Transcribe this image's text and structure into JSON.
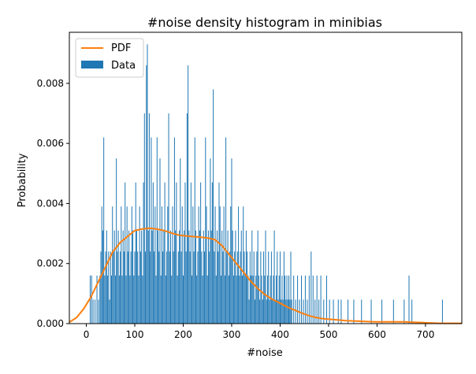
{
  "chart_data": {
    "type": "bar",
    "title": "#noise density histogram in minibias",
    "xlabel": "#noise",
    "ylabel": "Probability",
    "xlim": [
      -35,
      775
    ],
    "ylim": [
      0,
      0.0097
    ],
    "x_ticks": [
      0,
      100,
      200,
      300,
      400,
      500,
      600,
      700
    ],
    "y_ticks": [
      0.0,
      0.002,
      0.004,
      0.006,
      0.008
    ],
    "y_tick_labels": [
      "0.000",
      "0.002",
      "0.004",
      "0.006",
      "0.008"
    ],
    "grid": false,
    "legend_position": "top-left",
    "legend": [
      "PDF",
      "Data"
    ],
    "colors": {
      "Data": "#1f77b4",
      "PDF": "#ff7f0e"
    },
    "series": [
      {
        "name": "Data",
        "type": "bar",
        "bin_width": 1.6,
        "bins": [
          [
            8,
            0.0016
          ],
          [
            11,
            0.0016
          ],
          [
            14,
            0.0008
          ],
          [
            18,
            0.0008
          ],
          [
            22,
            0.0016
          ],
          [
            25,
            0.0008
          ],
          [
            28,
            0.0016
          ],
          [
            30,
            0.0024
          ],
          [
            32,
            0.0039
          ],
          [
            34,
            0.0031
          ],
          [
            36,
            0.0062
          ],
          [
            38,
            0.0016
          ],
          [
            40,
            0.0024
          ],
          [
            42,
            0.0031
          ],
          [
            44,
            0.0016
          ],
          [
            46,
            0.0024
          ],
          [
            48,
            0.0008
          ],
          [
            50,
            0.0024
          ],
          [
            52,
            0.0016
          ],
          [
            54,
            0.0039
          ],
          [
            56,
            0.0024
          ],
          [
            58,
            0.0031
          ],
          [
            60,
            0.0016
          ],
          [
            62,
            0.0055
          ],
          [
            64,
            0.0024
          ],
          [
            66,
            0.0031
          ],
          [
            68,
            0.0016
          ],
          [
            70,
            0.0024
          ],
          [
            72,
            0.0039
          ],
          [
            74,
            0.0016
          ],
          [
            76,
            0.0031
          ],
          [
            78,
            0.0024
          ],
          [
            80,
            0.0047
          ],
          [
            82,
            0.0016
          ],
          [
            84,
            0.0039
          ],
          [
            86,
            0.0024
          ],
          [
            88,
            0.0031
          ],
          [
            90,
            0.0016
          ],
          [
            92,
            0.0024
          ],
          [
            94,
            0.0039
          ],
          [
            96,
            0.0031
          ],
          [
            98,
            0.0016
          ],
          [
            100,
            0.0024
          ],
          [
            102,
            0.0047
          ],
          [
            104,
            0.0031
          ],
          [
            106,
            0.0024
          ],
          [
            108,
            0.0016
          ],
          [
            110,
            0.0039
          ],
          [
            112,
            0.0024
          ],
          [
            114,
            0.0031
          ],
          [
            116,
            0.0016
          ],
          [
            118,
            0.0047
          ],
          [
            120,
            0.007
          ],
          [
            122,
            0.0024
          ],
          [
            124,
            0.0086
          ],
          [
            126,
            0.0093
          ],
          [
            128,
            0.0031
          ],
          [
            130,
            0.007
          ],
          [
            132,
            0.0024
          ],
          [
            134,
            0.0062
          ],
          [
            136,
            0.0031
          ],
          [
            138,
            0.0047
          ],
          [
            140,
            0.0024
          ],
          [
            142,
            0.0039
          ],
          [
            144,
            0.0016
          ],
          [
            146,
            0.0062
          ],
          [
            148,
            0.0031
          ],
          [
            150,
            0.0024
          ],
          [
            152,
            0.0055
          ],
          [
            154,
            0.0016
          ],
          [
            156,
            0.0039
          ],
          [
            158,
            0.0024
          ],
          [
            160,
            0.0031
          ],
          [
            162,
            0.0047
          ],
          [
            164,
            0.0016
          ],
          [
            166,
            0.0024
          ],
          [
            168,
            0.0039
          ],
          [
            170,
            0.007
          ],
          [
            172,
            0.0024
          ],
          [
            174,
            0.0031
          ],
          [
            176,
            0.0016
          ],
          [
            178,
            0.0039
          ],
          [
            180,
            0.0024
          ],
          [
            182,
            0.0062
          ],
          [
            184,
            0.0031
          ],
          [
            186,
            0.0047
          ],
          [
            188,
            0.0016
          ],
          [
            190,
            0.0024
          ],
          [
            192,
            0.0031
          ],
          [
            194,
            0.0055
          ],
          [
            196,
            0.0024
          ],
          [
            198,
            0.0039
          ],
          [
            200,
            0.0016
          ],
          [
            202,
            0.0031
          ],
          [
            204,
            0.0047
          ],
          [
            206,
            0.0024
          ],
          [
            208,
            0.007
          ],
          [
            210,
            0.0086
          ],
          [
            212,
            0.0031
          ],
          [
            214,
            0.0024
          ],
          [
            216,
            0.0047
          ],
          [
            218,
            0.0016
          ],
          [
            220,
            0.0039
          ],
          [
            222,
            0.0024
          ],
          [
            224,
            0.0062
          ],
          [
            226,
            0.0031
          ],
          [
            228,
            0.0016
          ],
          [
            230,
            0.0024
          ],
          [
            232,
            0.0039
          ],
          [
            234,
            0.0031
          ],
          [
            236,
            0.0047
          ],
          [
            238,
            0.0024
          ],
          [
            240,
            0.0016
          ],
          [
            242,
            0.0031
          ],
          [
            244,
            0.0024
          ],
          [
            246,
            0.0062
          ],
          [
            248,
            0.0039
          ],
          [
            250,
            0.0016
          ],
          [
            252,
            0.0031
          ],
          [
            254,
            0.0024
          ],
          [
            256,
            0.0055
          ],
          [
            258,
            0.0031
          ],
          [
            260,
            0.0047
          ],
          [
            262,
            0.0078
          ],
          [
            264,
            0.0024
          ],
          [
            266,
            0.0039
          ],
          [
            268,
            0.0016
          ],
          [
            270,
            0.0031
          ],
          [
            272,
            0.0024
          ],
          [
            274,
            0.0047
          ],
          [
            276,
            0.0039
          ],
          [
            278,
            0.0016
          ],
          [
            280,
            0.0031
          ],
          [
            282,
            0.0024
          ],
          [
            284,
            0.0039
          ],
          [
            286,
            0.0016
          ],
          [
            288,
            0.0062
          ],
          [
            290,
            0.0024
          ],
          [
            292,
            0.0031
          ],
          [
            294,
            0.0016
          ],
          [
            296,
            0.0024
          ],
          [
            298,
            0.0039
          ],
          [
            300,
            0.0055
          ],
          [
            302,
            0.0031
          ],
          [
            304,
            0.0016
          ],
          [
            306,
            0.0024
          ],
          [
            308,
            0.0031
          ],
          [
            310,
            0.0016
          ],
          [
            312,
            0.0024
          ],
          [
            314,
            0.0039
          ],
          [
            316,
            0.0016
          ],
          [
            318,
            0.0024
          ],
          [
            320,
            0.0031
          ],
          [
            322,
            0.0016
          ],
          [
            324,
            0.0039
          ],
          [
            326,
            0.0024
          ],
          [
            328,
            0.0016
          ],
          [
            330,
            0.0031
          ],
          [
            332,
            0.0024
          ],
          [
            334,
            0.0016
          ],
          [
            336,
            0.0008
          ],
          [
            338,
            0.0024
          ],
          [
            340,
            0.0016
          ],
          [
            342,
            0.0031
          ],
          [
            344,
            0.0016
          ],
          [
            346,
            0.0024
          ],
          [
            348,
            0.0008
          ],
          [
            350,
            0.0016
          ],
          [
            352,
            0.0024
          ],
          [
            354,
            0.0031
          ],
          [
            356,
            0.0016
          ],
          [
            358,
            0.0008
          ],
          [
            360,
            0.0024
          ],
          [
            362,
            0.0016
          ],
          [
            364,
            0.0008
          ],
          [
            366,
            0.0024
          ],
          [
            368,
            0.0016
          ],
          [
            370,
            0.0031
          ],
          [
            372,
            0.0008
          ],
          [
            374,
            0.0016
          ],
          [
            376,
            0.0024
          ],
          [
            378,
            0.0008
          ],
          [
            380,
            0.0016
          ],
          [
            382,
            0.0024
          ],
          [
            384,
            0.0008
          ],
          [
            386,
            0.0016
          ],
          [
            388,
            0.0031
          ],
          [
            390,
            0.0008
          ],
          [
            392,
            0.0016
          ],
          [
            394,
            0.0024
          ],
          [
            396,
            0.0008
          ],
          [
            398,
            0.0016
          ],
          [
            400,
            0.0024
          ],
          [
            402,
            0.0008
          ],
          [
            404,
            0.0016
          ],
          [
            406,
            0.0008
          ],
          [
            408,
            0.0024
          ],
          [
            410,
            0.0016
          ],
          [
            412,
            0.0008
          ],
          [
            414,
            0.0016
          ],
          [
            416,
            0.0008
          ],
          [
            418,
            0.0016
          ],
          [
            420,
            0.0008
          ],
          [
            422,
            0.0024
          ],
          [
            424,
            0.0008
          ],
          [
            428,
            0.0016
          ],
          [
            432,
            0.0008
          ],
          [
            436,
            0.0016
          ],
          [
            440,
            0.0008
          ],
          [
            444,
            0.0016
          ],
          [
            448,
            0.0008
          ],
          [
            452,
            0.0016
          ],
          [
            456,
            0.0008
          ],
          [
            460,
            0.0016
          ],
          [
            464,
            0.0024
          ],
          [
            468,
            0.0016
          ],
          [
            472,
            0.0008
          ],
          [
            476,
            0.0016
          ],
          [
            480,
            0.0008
          ],
          [
            484,
            0.0016
          ],
          [
            490,
            0.0008
          ],
          [
            496,
            0.0016
          ],
          [
            502,
            0.0008
          ],
          [
            510,
            0.0008
          ],
          [
            520,
            0.0008
          ],
          [
            526,
            0.0008
          ],
          [
            540,
            0.0008
          ],
          [
            552,
            0.0008
          ],
          [
            568,
            0.0008
          ],
          [
            588,
            0.0008
          ],
          [
            610,
            0.0008
          ],
          [
            634,
            0.0008
          ],
          [
            656,
            0.0008
          ],
          [
            666,
            0.0016
          ],
          [
            672,
            0.0008
          ],
          [
            735,
            0.0008
          ]
        ]
      },
      {
        "name": "PDF",
        "type": "line",
        "points": [
          [
            -35,
            5e-05
          ],
          [
            -20,
            0.0002
          ],
          [
            -5,
            0.0005
          ],
          [
            10,
            0.0009
          ],
          [
            25,
            0.0014
          ],
          [
            40,
            0.0019
          ],
          [
            55,
            0.0024
          ],
          [
            70,
            0.0027
          ],
          [
            85,
            0.0029
          ],
          [
            100,
            0.0031
          ],
          [
            115,
            0.00315
          ],
          [
            130,
            0.00318
          ],
          [
            145,
            0.00315
          ],
          [
            160,
            0.0031
          ],
          [
            175,
            0.00302
          ],
          [
            190,
            0.00295
          ],
          [
            205,
            0.00292
          ],
          [
            220,
            0.0029
          ],
          [
            235,
            0.00288
          ],
          [
            250,
            0.00285
          ],
          [
            265,
            0.0028
          ],
          [
            280,
            0.0026
          ],
          [
            295,
            0.0023
          ],
          [
            310,
            0.002
          ],
          [
            325,
            0.0017
          ],
          [
            340,
            0.0014
          ],
          [
            355,
            0.00115
          ],
          [
            370,
            0.00095
          ],
          [
            385,
            0.0008
          ],
          [
            400,
            0.00068
          ],
          [
            415,
            0.00055
          ],
          [
            430,
            0.00045
          ],
          [
            445,
            0.00035
          ],
          [
            460,
            0.00026
          ],
          [
            475,
            0.0002
          ],
          [
            490,
            0.00016
          ],
          [
            505,
            0.00014
          ],
          [
            520,
            0.00012
          ],
          [
            535,
            0.0001
          ],
          [
            550,
            9e-05
          ],
          [
            565,
            8e-05
          ],
          [
            580,
            7e-05
          ],
          [
            595,
            6e-05
          ],
          [
            610,
            6e-05
          ],
          [
            625,
            6e-05
          ],
          [
            640,
            6e-05
          ],
          [
            655,
            6e-05
          ],
          [
            670,
            5e-05
          ],
          [
            685,
            4e-05
          ],
          [
            700,
            3e-05
          ],
          [
            715,
            2e-05
          ],
          [
            730,
            1e-05
          ],
          [
            745,
            1e-05
          ],
          [
            760,
            1e-05
          ],
          [
            775,
            1e-05
          ]
        ]
      }
    ]
  }
}
